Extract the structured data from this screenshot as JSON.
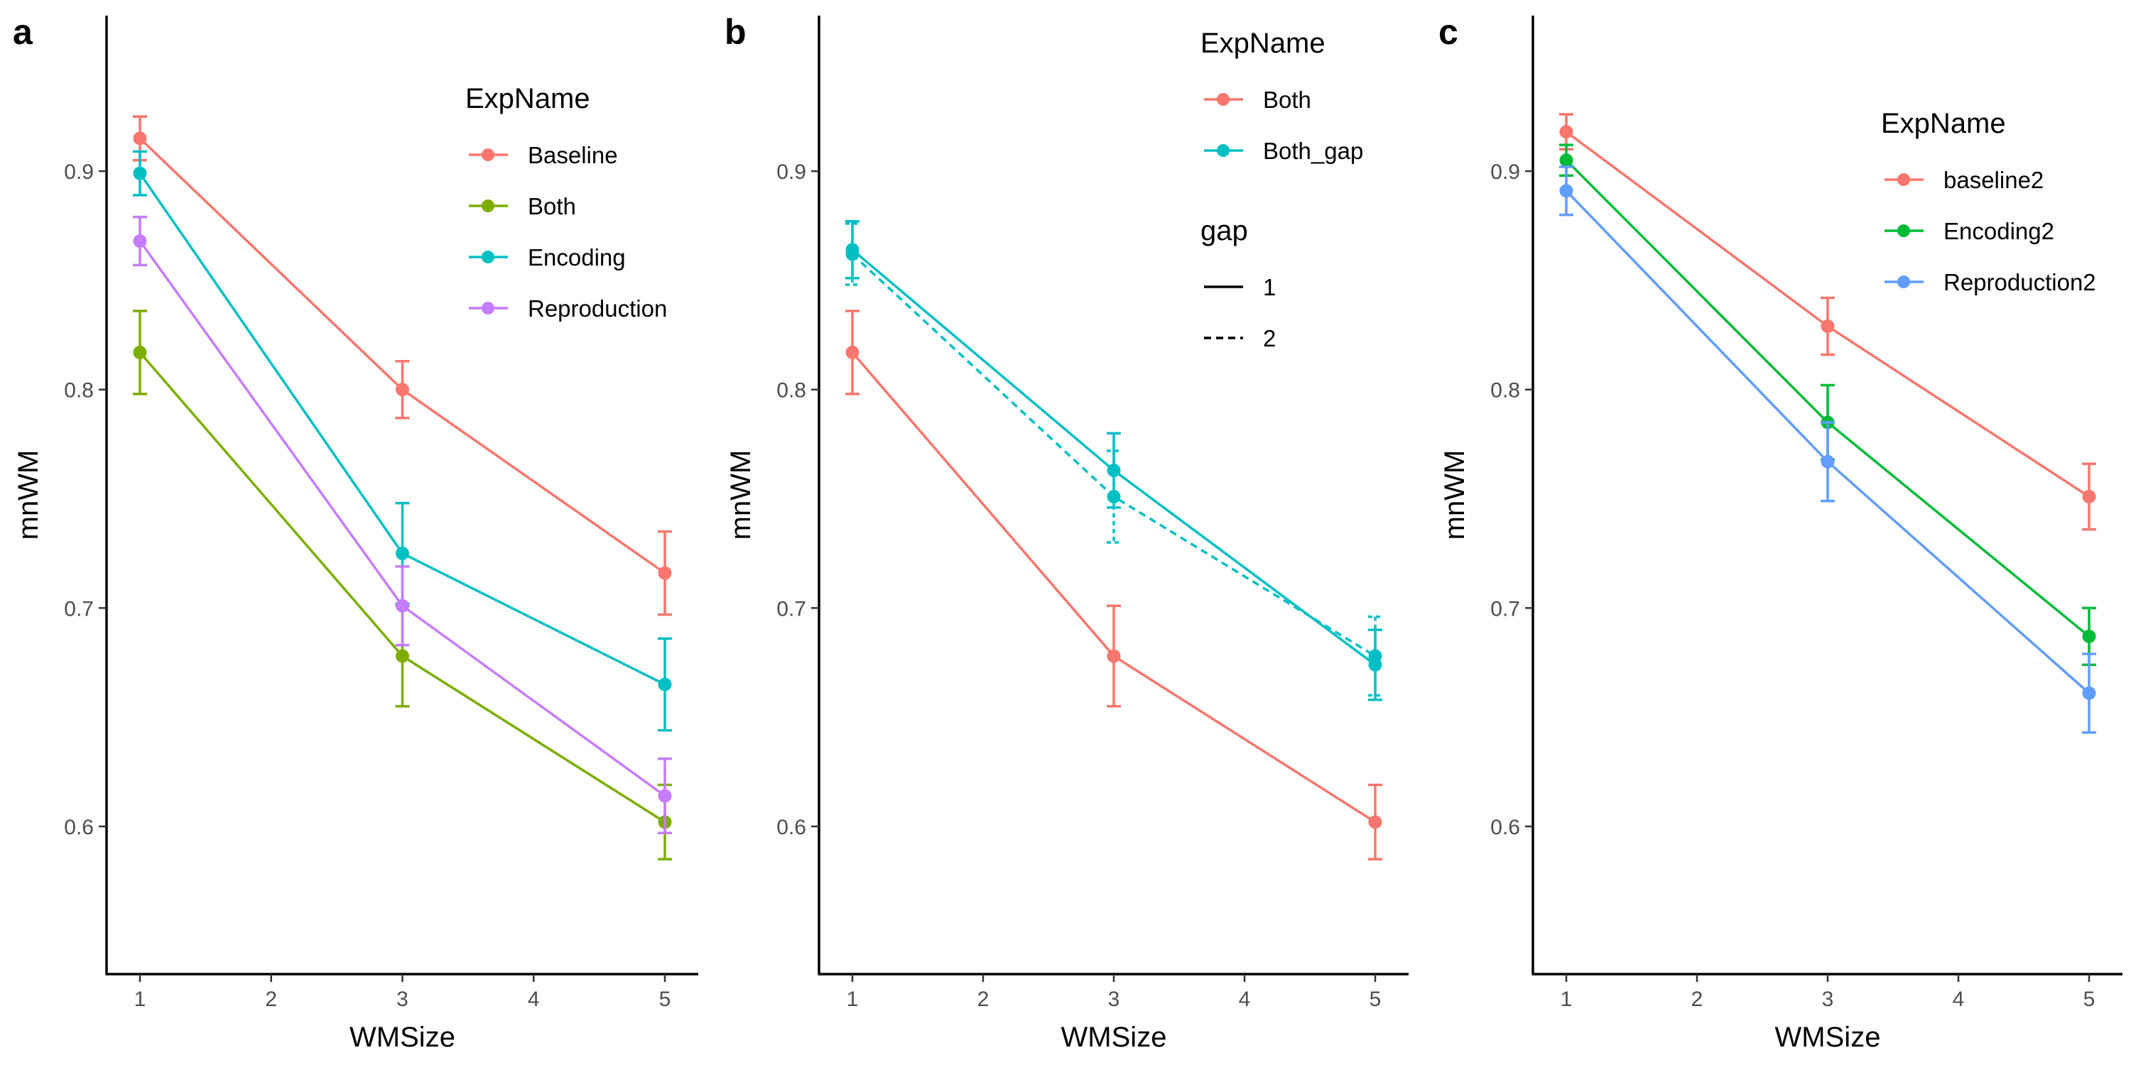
{
  "chart_data": [
    {
      "type": "line",
      "panel_label": "a",
      "xlabel": "WMSize",
      "ylabel": "mnWM",
      "x_ticks": [
        1,
        2,
        3,
        4,
        5
      ],
      "y_ticks": [
        0.6,
        0.7,
        0.8,
        0.9
      ],
      "y_tick_labels": [
        "0.6",
        "0.7",
        "0.8",
        "0.9"
      ],
      "xlim": [
        0.75,
        5.25
      ],
      "ylim": [
        0.53,
        0.97
      ],
      "grid": false,
      "legend": {
        "position": "top-right",
        "sections": [
          {
            "title": "ExpName",
            "type": "color",
            "entries": [
              {
                "label": "Baseline",
                "color": "#F8766D",
                "dash": "solid"
              },
              {
                "label": "Both",
                "color": "#7CAE00",
                "dash": "solid"
              },
              {
                "label": "Encoding",
                "color": "#00BFC4",
                "dash": "solid"
              },
              {
                "label": "Reproduction",
                "color": "#C77CFF",
                "dash": "solid"
              }
            ]
          }
        ]
      },
      "series": [
        {
          "name": "Baseline",
          "color": "#F8766D",
          "dash": "solid",
          "x": [
            1,
            3,
            5
          ],
          "y": [
            0.915,
            0.8,
            0.716
          ],
          "err": [
            0.01,
            0.013,
            0.019
          ]
        },
        {
          "name": "Both",
          "color": "#7CAE00",
          "dash": "solid",
          "x": [
            1,
            3,
            5
          ],
          "y": [
            0.817,
            0.678,
            0.602
          ],
          "err": [
            0.019,
            0.023,
            0.017
          ]
        },
        {
          "name": "Encoding",
          "color": "#00BFC4",
          "dash": "solid",
          "x": [
            1,
            3,
            5
          ],
          "y": [
            0.899,
            0.725,
            0.665
          ],
          "err": [
            0.01,
            0.023,
            0.021
          ]
        },
        {
          "name": "Reproduction",
          "color": "#C77CFF",
          "dash": "solid",
          "x": [
            1,
            3,
            5
          ],
          "y": [
            0.868,
            0.701,
            0.614
          ],
          "err": [
            0.011,
            0.018,
            0.017
          ]
        }
      ]
    },
    {
      "type": "line",
      "panel_label": "b",
      "xlabel": "WMSize",
      "ylabel": "mnWM",
      "x_ticks": [
        1,
        2,
        3,
        4,
        5
      ],
      "y_ticks": [
        0.6,
        0.7,
        0.8,
        0.9
      ],
      "y_tick_labels": [
        "0.6",
        "0.7",
        "0.8",
        "0.9"
      ],
      "xlim": [
        0.75,
        5.25
      ],
      "ylim": [
        0.53,
        0.97
      ],
      "grid": false,
      "legend": {
        "position": "top-right",
        "sections": [
          {
            "title": "ExpName",
            "type": "color",
            "entries": [
              {
                "label": "Both",
                "color": "#F8766D",
                "dash": "solid"
              },
              {
                "label": "Both_gap",
                "color": "#00BFC4",
                "dash": "solid"
              }
            ]
          },
          {
            "title": "gap",
            "type": "linetype",
            "entries": [
              {
                "label": "1",
                "color": "#000000",
                "dash": "solid"
              },
              {
                "label": "2",
                "color": "#000000",
                "dash": "dashed"
              }
            ]
          }
        ]
      },
      "series": [
        {
          "name": "Both",
          "color": "#F8766D",
          "dash": "solid",
          "x": [
            1,
            3,
            5
          ],
          "y": [
            0.817,
            0.678,
            0.602
          ],
          "err": [
            0.019,
            0.023,
            0.017
          ]
        },
        {
          "name": "Both_gap",
          "color": "#00BFC4",
          "dash": "solid",
          "x": [
            1,
            3,
            5
          ],
          "y": [
            0.864,
            0.763,
            0.674
          ],
          "err": [
            0.013,
            0.017,
            0.016
          ]
        },
        {
          "name": "Both_gap",
          "color": "#00BFC4",
          "dash": "dashed",
          "x": [
            1,
            3,
            5
          ],
          "y": [
            0.862,
            0.751,
            0.678
          ],
          "err": [
            0.014,
            0.021,
            0.018
          ]
        }
      ]
    },
    {
      "type": "line",
      "panel_label": "c",
      "xlabel": "WMSize",
      "ylabel": "mnWM",
      "x_ticks": [
        1,
        2,
        3,
        4,
        5
      ],
      "y_ticks": [
        0.6,
        0.7,
        0.8,
        0.9
      ],
      "y_tick_labels": [
        "0.6",
        "0.7",
        "0.8",
        "0.9"
      ],
      "xlim": [
        0.75,
        5.25
      ],
      "ylim": [
        0.53,
        0.97
      ],
      "grid": false,
      "legend": {
        "position": "top-right",
        "sections": [
          {
            "title": "ExpName",
            "type": "color",
            "entries": [
              {
                "label": "baseline2",
                "color": "#F8766D",
                "dash": "solid"
              },
              {
                "label": "Encoding2",
                "color": "#00BA38",
                "dash": "solid"
              },
              {
                "label": "Reproduction2",
                "color": "#619CFF",
                "dash": "solid"
              }
            ]
          }
        ]
      },
      "series": [
        {
          "name": "baseline2",
          "color": "#F8766D",
          "dash": "solid",
          "x": [
            1,
            3,
            5
          ],
          "y": [
            0.918,
            0.829,
            0.751
          ],
          "err": [
            0.008,
            0.013,
            0.015
          ]
        },
        {
          "name": "Encoding2",
          "color": "#00BA38",
          "dash": "solid",
          "x": [
            1,
            3,
            5
          ],
          "y": [
            0.905,
            0.785,
            0.687
          ],
          "err": [
            0.007,
            0.017,
            0.013
          ]
        },
        {
          "name": "Reproduction2",
          "color": "#619CFF",
          "dash": "solid",
          "x": [
            1,
            3,
            5
          ],
          "y": [
            0.891,
            0.767,
            0.661
          ],
          "err": [
            0.011,
            0.018,
            0.018
          ]
        }
      ]
    }
  ]
}
